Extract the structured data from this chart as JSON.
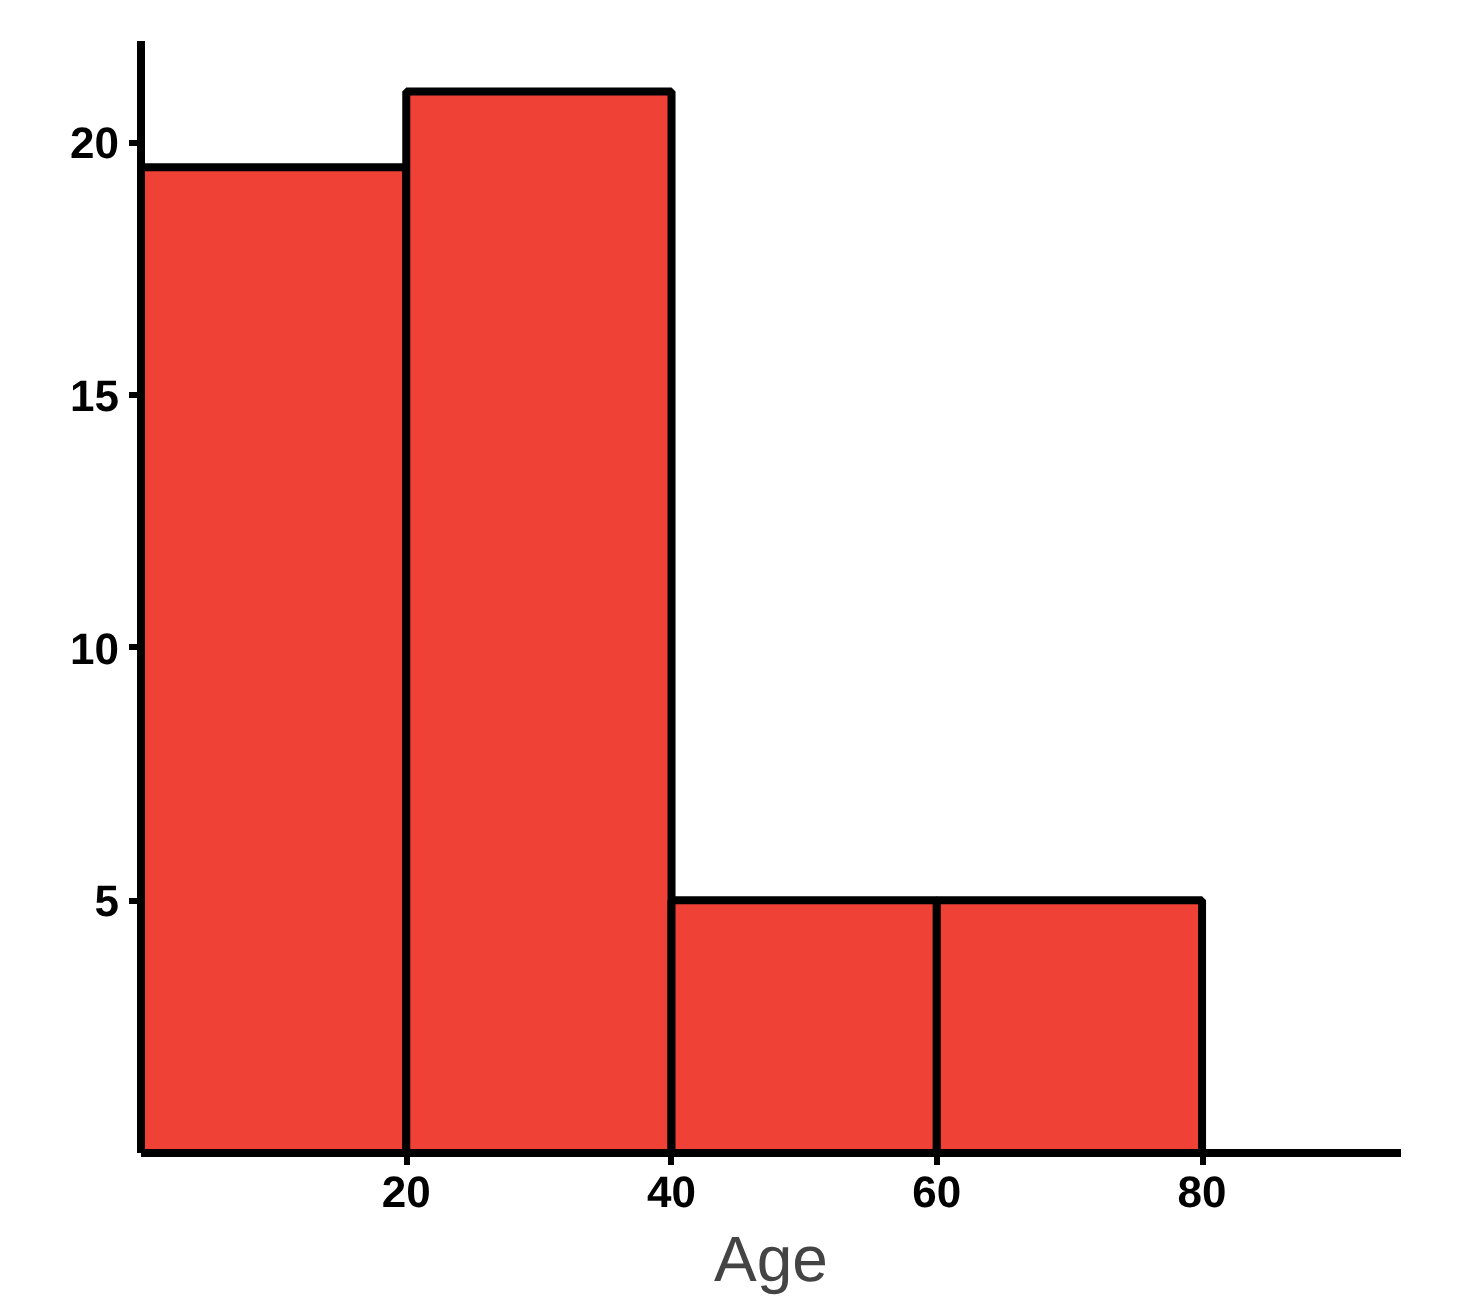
{
  "chart_data": {
    "type": "histogram",
    "xlabel": "Age",
    "bins": [
      0,
      20,
      40,
      60,
      80
    ],
    "values": [
      19.5,
      21,
      5,
      5
    ],
    "color": "#ef4136",
    "xlim": [
      0,
      95
    ],
    "ylim": [
      0,
      22
    ],
    "xticks": [
      20,
      40,
      60,
      80
    ],
    "yticks": [
      5,
      10,
      15,
      20
    ],
    "grid": false
  }
}
